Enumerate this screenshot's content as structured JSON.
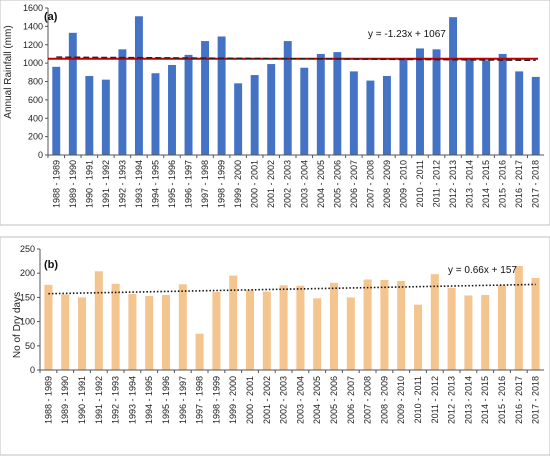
{
  "chart_data": [
    {
      "type": "bar",
      "panel_label": "(a)",
      "ylabel": "Annual Rainfall (mm)",
      "ylim": [
        0,
        1600
      ],
      "yticks": [
        0,
        200,
        400,
        600,
        800,
        1000,
        1200,
        1400,
        1600
      ],
      "categories": [
        "1988 - 1989",
        "1989 - 1990",
        "1990 - 1991",
        "1991 - 1992",
        "1992 - 1993",
        "1993 - 1994",
        "1994 - 1995",
        "1995 - 1996",
        "1996 - 1997",
        "1997 - 1998",
        "1998 - 1999",
        "1999 - 2000",
        "2000 - 2001",
        "2001 - 2002",
        "2002 - 2003",
        "2003 - 2004",
        "2004 - 2005",
        "2005 - 2006",
        "2006 - 2007",
        "2007 - 2008",
        "2008 - 2009",
        "2009 - 2010",
        "2010 - 2011",
        "2011 - 2012",
        "2012 - 2013",
        "2013 - 2014",
        "2014 - 2015",
        "2015 - 2016",
        "2016 - 2017",
        "2017 - 2018"
      ],
      "values": [
        960,
        1330,
        860,
        820,
        1150,
        1510,
        890,
        980,
        1090,
        1240,
        1290,
        780,
        870,
        990,
        1240,
        950,
        1100,
        1120,
        910,
        810,
        860,
        1050,
        1160,
        1150,
        1500,
        1040,
        1030,
        1100,
        910,
        850
      ],
      "bar_color": "#4472c4",
      "trendline": {
        "slope": -1.23,
        "intercept": 1067,
        "color": "#222222",
        "style": "dashed"
      },
      "mean_line": {
        "value": 1048,
        "color": "#c00000"
      },
      "equation_label": "y = -1.23x + 1067",
      "grid": false
    },
    {
      "type": "bar",
      "panel_label": "(b)",
      "ylabel": "No of Dry days",
      "ylim": [
        0,
        250
      ],
      "yticks": [
        0,
        50,
        100,
        150,
        200,
        250
      ],
      "categories": [
        "1988 - 1989",
        "1989 - 1990",
        "1990 - 1991",
        "1991 - 1992",
        "1992 - 1993",
        "1993 - 1994",
        "1994 - 1995",
        "1995 - 1996",
        "1996 - 1997",
        "1997 - 1998",
        "1998 - 1999",
        "1999 - 2000",
        "2000 - 2001",
        "2001 - 2002",
        "2002 - 2003",
        "2003 - 2004",
        "2004 - 2005",
        "2005 - 2006",
        "2006 - 2007",
        "2007 - 2008",
        "2008 - 2009",
        "2009 - 2010",
        "2010 - 2011",
        "2011 - 2012",
        "2012 - 2013",
        "2013 - 2014",
        "2014 - 2015",
        "2015 - 2016",
        "2016 - 2017",
        "2017 - 2018"
      ],
      "values": [
        176,
        156,
        150,
        204,
        178,
        157,
        153,
        155,
        177,
        75,
        161,
        195,
        165,
        162,
        175,
        174,
        148,
        180,
        150,
        187,
        186,
        184,
        135,
        198,
        170,
        154,
        155,
        175,
        215,
        190
      ],
      "bar_color": "#f5c58f",
      "trendline": {
        "slope": 0.66,
        "intercept": 157,
        "color": "#111111",
        "style": "dotted"
      },
      "equation_label": "y = 0.66x + 157",
      "grid": false
    }
  ]
}
